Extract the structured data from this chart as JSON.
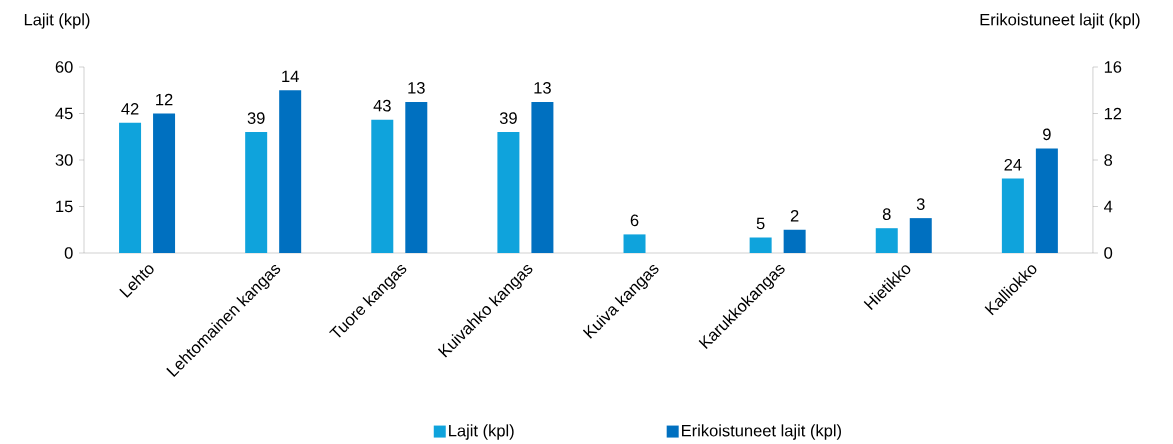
{
  "chart_data": {
    "type": "bar",
    "categories": [
      "Lehto",
      "Lehtomainen kangas",
      "Tuore kangas",
      "Kuivahko kangas",
      "Kuiva kangas",
      "Karukkokangas",
      "Hietikko",
      "Kalliokko"
    ],
    "series": [
      {
        "name": "Lajit (kpl)",
        "color": "#0fa3dc",
        "values": [
          42,
          39,
          43,
          39,
          6,
          5,
          8,
          24
        ]
      },
      {
        "name": "Erikoistuneet lajit (kpl)",
        "color": "#0070c0",
        "axis": "y2",
        "values": [
          12,
          14,
          13,
          13,
          null,
          2,
          3,
          9
        ]
      }
    ],
    "ylabel": "Lajit (kpl)",
    "y2label": "Erikoistuneet lajit (kpl)",
    "ylim": [
      0,
      60
    ],
    "yticks": [
      0,
      15,
      30,
      45,
      60
    ],
    "y2lim": [
      0,
      16
    ],
    "y2ticks": [
      0,
      4,
      8,
      12,
      16
    ],
    "data_labels": true,
    "legend": "bottom"
  }
}
